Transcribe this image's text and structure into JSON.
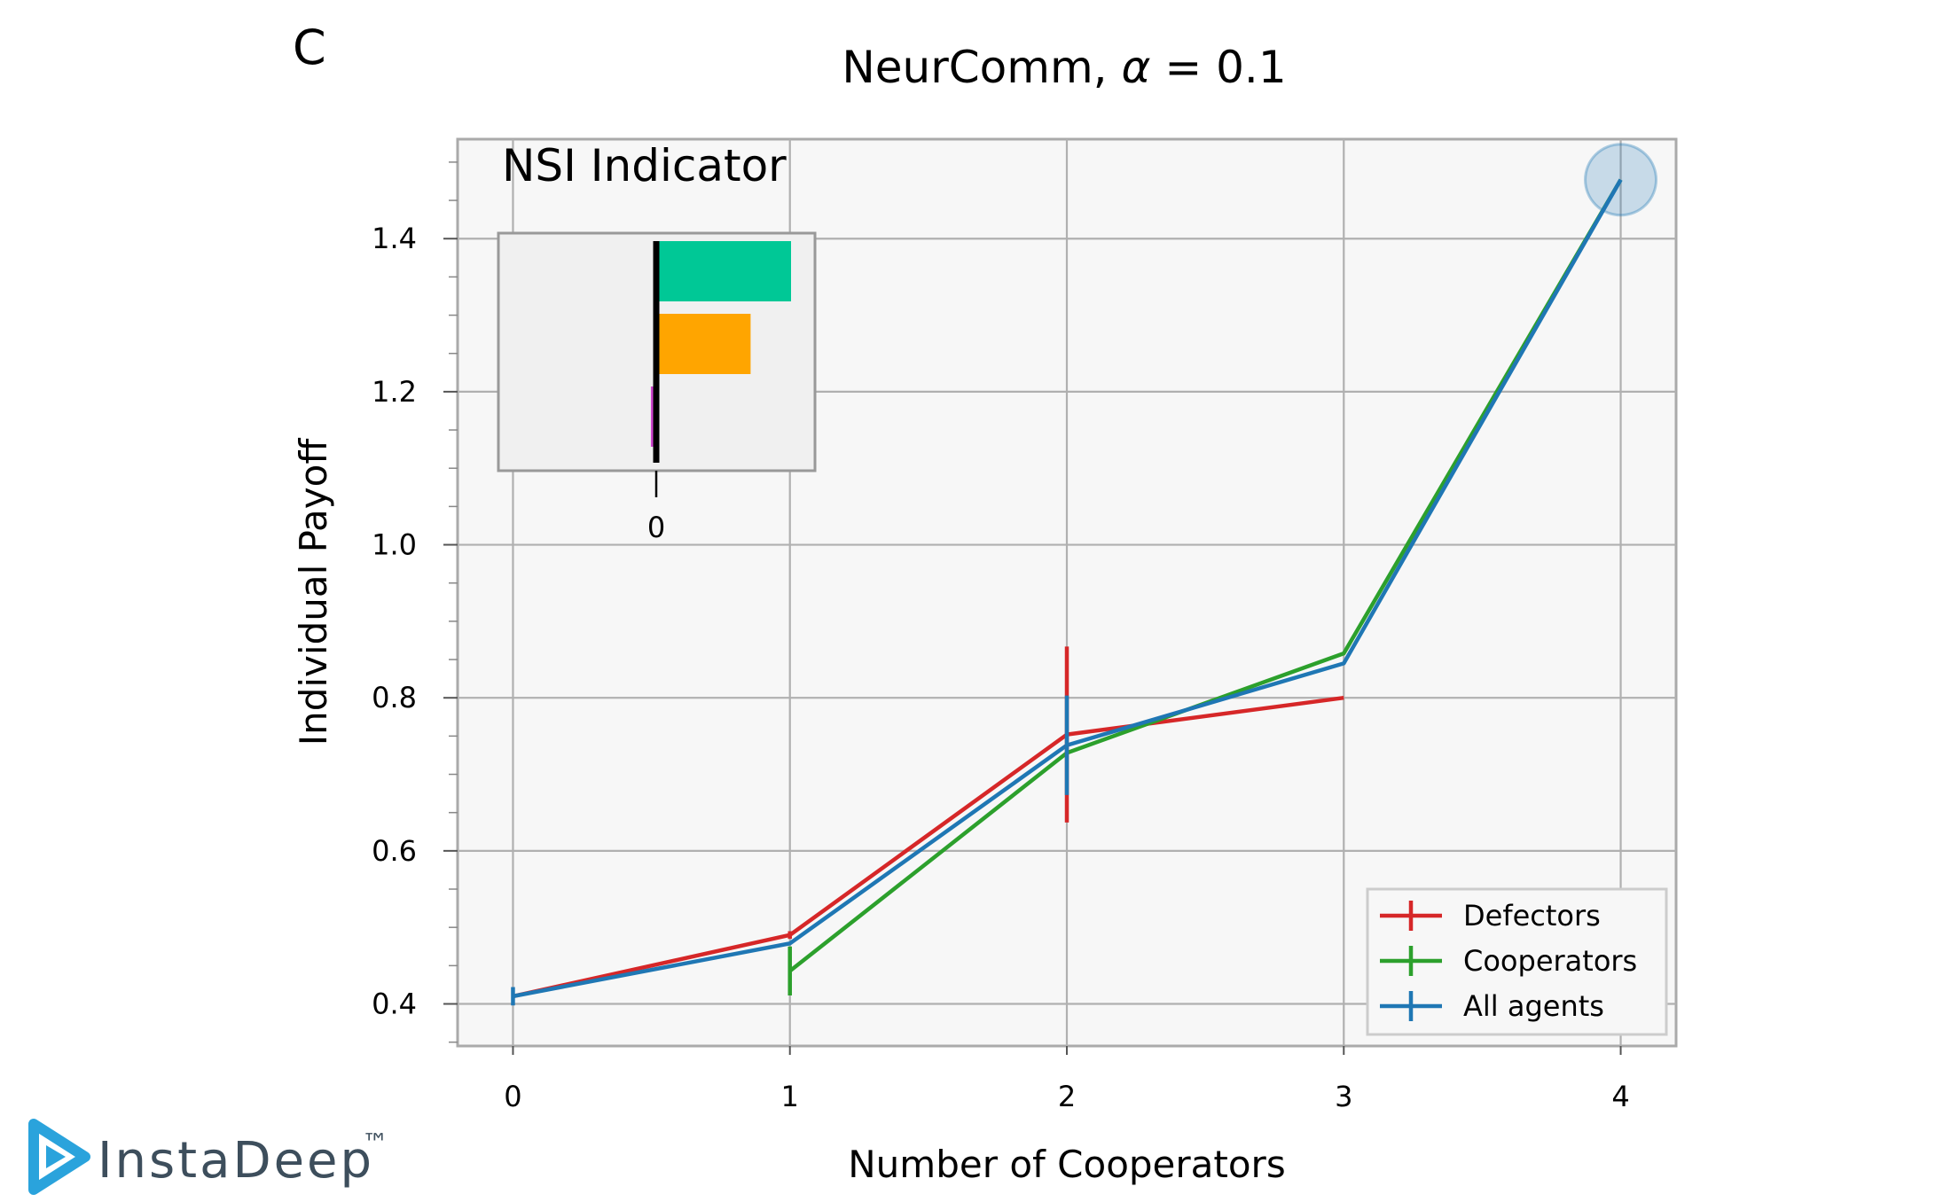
{
  "panel_label": "C",
  "brand": {
    "name": "InstaDeep",
    "tm": "™"
  },
  "chart_data": {
    "type": "line",
    "title": "NeurComm, α = 0.1",
    "title_prefix": "NeurComm, ",
    "title_alpha": "α",
    "title_suffix": " = 0.1",
    "xlabel": "Number of Cooperators",
    "ylabel": "Individual Payoff",
    "xlim": [
      -0.2,
      4.2
    ],
    "ylim": [
      0.345,
      1.53
    ],
    "x_ticks": [
      0,
      1,
      2,
      3,
      4
    ],
    "x_tick_labels": [
      "0",
      "1",
      "2",
      "3",
      "4"
    ],
    "y_ticks": [
      0.4,
      0.6,
      0.8,
      1.0,
      1.2,
      1.4
    ],
    "y_tick_labels": [
      "0.4",
      "0.6",
      "0.8",
      "1.0",
      "1.2",
      "1.4"
    ],
    "grid": true,
    "legend_position": "bottom-right",
    "series": [
      {
        "name": "Defectors",
        "color": "#d62728",
        "x": [
          0,
          1,
          2,
          3
        ],
        "y": [
          0.41,
          0.49,
          0.752,
          0.8
        ],
        "err": [
          0.0,
          0.005,
          0.115,
          0.0
        ]
      },
      {
        "name": "Cooperators",
        "color": "#2ca02c",
        "x": [
          1,
          2,
          3,
          4
        ],
        "y": [
          0.443,
          0.728,
          0.858,
          1.477
        ],
        "err": [
          0.032,
          0.0,
          0.0,
          0.0
        ]
      },
      {
        "name": "All agents",
        "color": "#1f77b4",
        "x": [
          0,
          1,
          2,
          3,
          4
        ],
        "y": [
          0.41,
          0.479,
          0.738,
          0.845,
          1.477
        ],
        "err": [
          0.012,
          0.0,
          0.065,
          0.0,
          0.0
        ]
      }
    ],
    "highlight": {
      "x": 4,
      "y": 1.477,
      "color": "#1f77b4"
    },
    "inset": {
      "title": "NSI Indicator",
      "tick_label": "0",
      "bars": [
        {
          "value": 1.0,
          "color": "#00c896"
        },
        {
          "value": 0.7,
          "color": "#ffa500"
        },
        {
          "value": -0.04,
          "color": "#cc44cc"
        }
      ]
    }
  }
}
